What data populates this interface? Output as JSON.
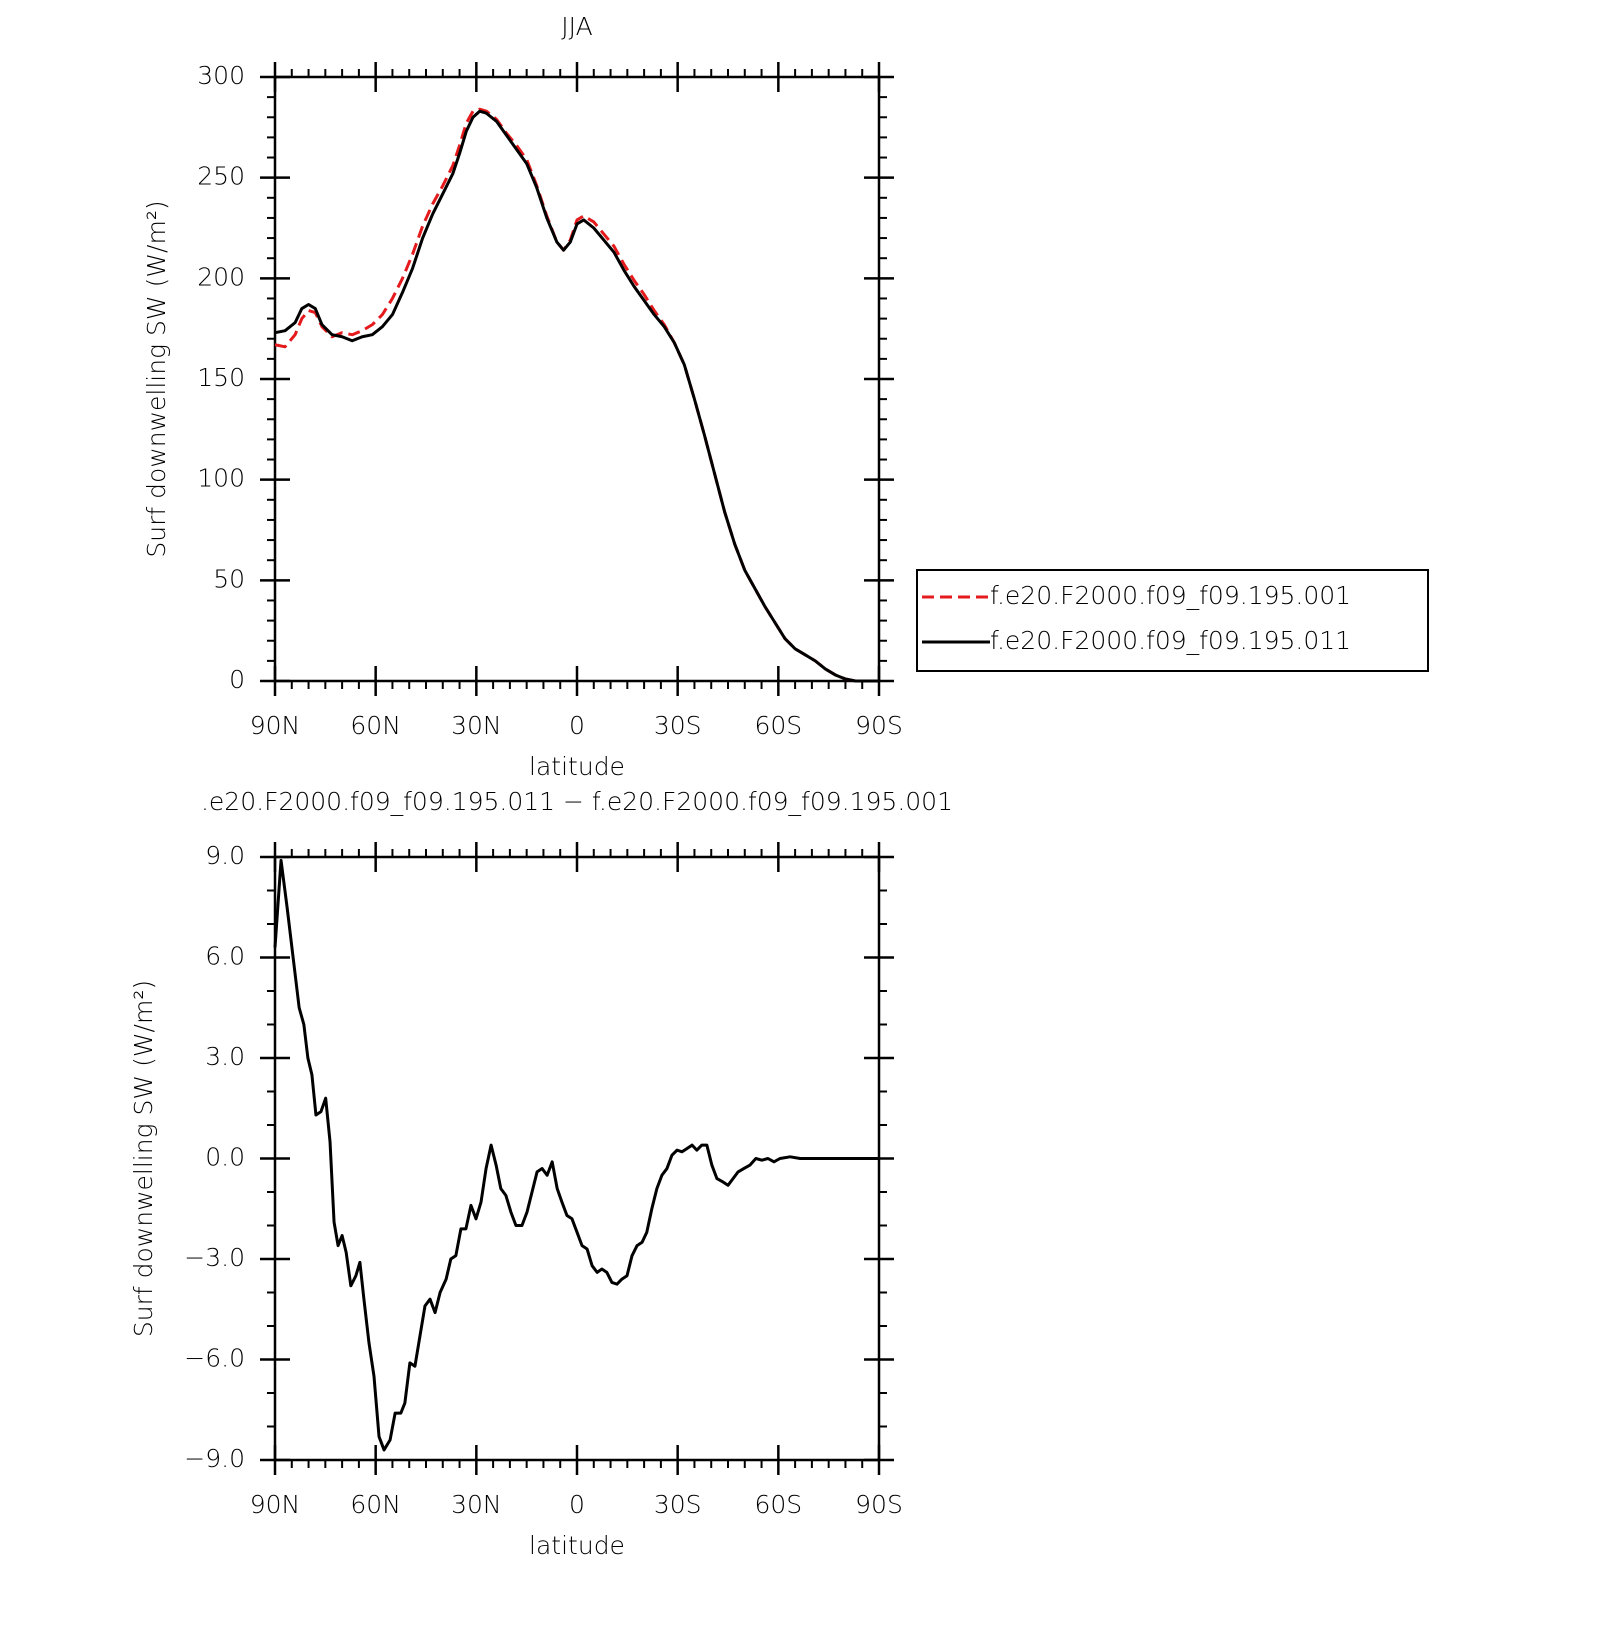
{
  "chart_data": [
    {
      "type": "line",
      "title": "JJA",
      "xlabel": "latitude",
      "ylabel": "Surf downwelling SW (W/m²)",
      "xlim": [
        90,
        -90
      ],
      "ylim": [
        0,
        300
      ],
      "xticks": [
        {
          "value": 90,
          "label": "90N"
        },
        {
          "value": 60,
          "label": "60N"
        },
        {
          "value": 30,
          "label": "30N"
        },
        0,
        {
          "value": -30,
          "label": "30S"
        },
        {
          "value": -60,
          "label": "60S"
        },
        {
          "value": -90,
          "label": "90S"
        }
      ],
      "yticks": [
        0,
        50,
        100,
        150,
        200,
        250,
        300
      ],
      "legend": "right",
      "x": [
        90,
        87,
        84,
        82,
        80,
        78,
        76,
        73,
        70,
        67,
        64,
        61,
        58,
        55,
        52,
        49,
        46,
        43,
        40,
        37,
        35,
        33,
        31,
        29,
        27,
        24,
        21,
        18,
        15,
        12,
        9,
        6,
        4,
        2,
        0,
        -2,
        -5,
        -8,
        -11,
        -14,
        -17,
        -20,
        -23,
        -26,
        -29,
        -32,
        -35,
        -38,
        -41,
        -44,
        -47,
        -50,
        -53,
        -56,
        -59,
        -62,
        -65,
        -68,
        -71,
        -74,
        -77,
        -80,
        -83,
        -86,
        -90
      ],
      "series": [
        {
          "name": "f.e20.F2000.f09_f09.195.001",
          "color": "#e41a1c",
          "dashed": true,
          "values": [
            167,
            166,
            172,
            180,
            184,
            183,
            176,
            171,
            173,
            172,
            174,
            177,
            182,
            190,
            200,
            212,
            226,
            237,
            246,
            256,
            266,
            277,
            283,
            284,
            283,
            279,
            272,
            266,
            259,
            246,
            231,
            218,
            214,
            219,
            229,
            231,
            228,
            222,
            216,
            207,
            199,
            192,
            184,
            177,
            168,
            157,
            140,
            122,
            103,
            84,
            68,
            55,
            46,
            37,
            29,
            21,
            16,
            13,
            10,
            6,
            3,
            1,
            0,
            0,
            0
          ]
        },
        {
          "name": "f.e20.F2000.f09_f09.195.011",
          "color": "#000000",
          "dashed": false,
          "values": [
            173,
            174,
            178,
            185,
            187,
            185,
            177,
            172,
            171,
            169,
            171,
            172,
            176,
            182,
            193,
            205,
            220,
            232,
            242,
            252,
            262,
            273,
            280,
            283,
            282,
            278,
            271,
            264,
            257,
            245,
            230,
            218,
            214,
            218,
            227,
            229,
            225,
            219,
            213,
            204,
            196,
            189,
            182,
            176,
            168,
            157,
            140,
            122,
            103,
            84,
            68,
            55,
            46,
            37,
            29,
            21,
            16,
            13,
            10,
            6,
            3,
            1,
            0,
            0,
            0
          ]
        }
      ]
    },
    {
      "type": "line",
      "title": ".e20.F2000.f09_f09.195.011 − f.e20.F2000.f09_f09.195.001",
      "xlabel": "latitude",
      "ylabel": "Surf downwelling SW (W/m²)",
      "xlim": [
        90,
        -90
      ],
      "ylim": [
        -9,
        9
      ],
      "xticks": [
        {
          "value": 90,
          "label": "90N"
        },
        {
          "value": 60,
          "label": "60N"
        },
        {
          "value": 30,
          "label": "30N"
        },
        0,
        {
          "value": -30,
          "label": "30S"
        },
        {
          "value": -60,
          "label": "60S"
        },
        {
          "value": -90,
          "label": "90S"
        }
      ],
      "yticks": [
        {
          "value": -9,
          "label": "−9.0"
        },
        {
          "value": -6,
          "label": "−6.0"
        },
        {
          "value": -3,
          "label": "−3.0"
        },
        {
          "value": 0,
          "label": "0.0"
        },
        {
          "value": 3,
          "label": "3.0"
        },
        {
          "value": 6,
          "label": "6.0"
        },
        {
          "value": 9,
          "label": "9.0"
        }
      ],
      "x": [
        90,
        88.2,
        86.4,
        84.6,
        82.8,
        81.4,
        80.2,
        79,
        77.8,
        76.3,
        74.9,
        73.6,
        72.4,
        71.2,
        70,
        68.8,
        67.4,
        65.9,
        64.7,
        63.5,
        62,
        60.5,
        59,
        57.5,
        55.7,
        54.2,
        52.5,
        51.3,
        49.8,
        48.3,
        46.8,
        45.3,
        43.8,
        42.3,
        40.8,
        39,
        37.6,
        36.1,
        34.6,
        33.1,
        31.6,
        30.1,
        28.6,
        27.1,
        25.6,
        24.1,
        22.7,
        21.2,
        19.7,
        18.2,
        16.4,
        14.9,
        13.4,
        11.9,
        10.4,
        8.9,
        7.4,
        5.9,
        4.5,
        3,
        1.5,
        0,
        -1.5,
        -3,
        -4.5,
        -6,
        -7.4,
        -8.9,
        -10.4,
        -11.9,
        -13.4,
        -14.9,
        -16.4,
        -17.9,
        -19.4,
        -20.8,
        -22.3,
        -23.8,
        -25.3,
        -26.8,
        -28.3,
        -29.8,
        -31.3,
        -32.8,
        -34.3,
        -35.7,
        -37.2,
        -38.7,
        -40.2,
        -41.7,
        -43.5,
        -45,
        -46.5,
        -48,
        -49.7,
        -51.5,
        -53.3,
        -55.1,
        -56.9,
        -58.7,
        -60.5,
        -63.5,
        -66.5,
        -71,
        -75.5,
        -81.4,
        -90
      ],
      "series": [
        {
          "color": "#000000",
          "dashed": false,
          "values": [
            6.3,
            8.9,
            7.5,
            6,
            4.5,
            4,
            3,
            2.5,
            1.3,
            1.4,
            1.8,
            0.5,
            -1.9,
            -2.6,
            -2.3,
            -2.8,
            -3.8,
            -3.5,
            -3.1,
            -4.2,
            -5.5,
            -6.5,
            -8.3,
            -8.7,
            -8.4,
            -7.6,
            -7.6,
            -7.3,
            -6.1,
            -6.2,
            -5.3,
            -4.4,
            -4.2,
            -4.6,
            -4,
            -3.6,
            -3,
            -2.9,
            -2.1,
            -2.1,
            -1.4,
            -1.8,
            -1.3,
            -0.3,
            0.4,
            -0.2,
            -0.9,
            -1.1,
            -1.6,
            -2,
            -2,
            -1.6,
            -1,
            -0.4,
            -0.3,
            -0.5,
            -0.1,
            -0.9,
            -1.3,
            -1.7,
            -1.8,
            -2.2,
            -2.6,
            -2.7,
            -3.2,
            -3.4,
            -3.3,
            -3.4,
            -3.7,
            -3.75,
            -3.6,
            -3.5,
            -2.9,
            -2.6,
            -2.5,
            -2.2,
            -1.5,
            -0.9,
            -0.5,
            -0.3,
            0.1,
            0.25,
            0.2,
            0.3,
            0.4,
            0.25,
            0.4,
            0.4,
            -0.2,
            -0.6,
            -0.7,
            -0.8,
            -0.6,
            -0.4,
            -0.3,
            -0.2,
            0,
            -0.05,
            0,
            -0.1,
            0,
            0.05,
            0,
            0,
            0,
            0,
            0
          ]
        }
      ]
    }
  ]
}
